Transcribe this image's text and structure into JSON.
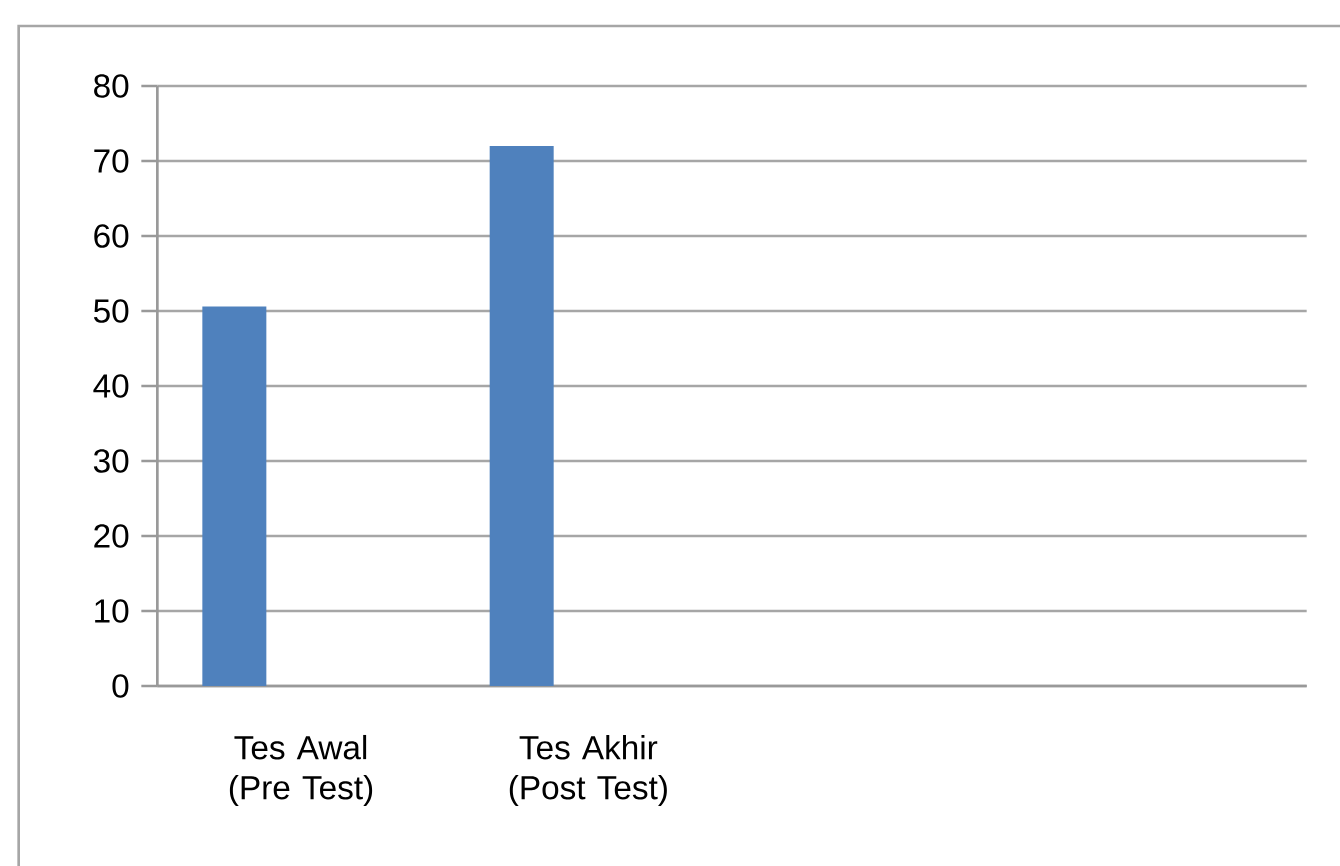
{
  "chart_data": {
    "type": "bar",
    "categories": [
      "Tes Awal (Pre Test)",
      "Tes Akhir (Post Test)",
      null,
      null
    ],
    "values": [
      50.6,
      72,
      null,
      null
    ],
    "color": "#4f81bd",
    "ylim": [
      0,
      80
    ],
    "yticks": [
      0,
      10,
      20,
      30,
      40,
      50,
      60,
      70,
      80
    ],
    "grid": "y"
  }
}
